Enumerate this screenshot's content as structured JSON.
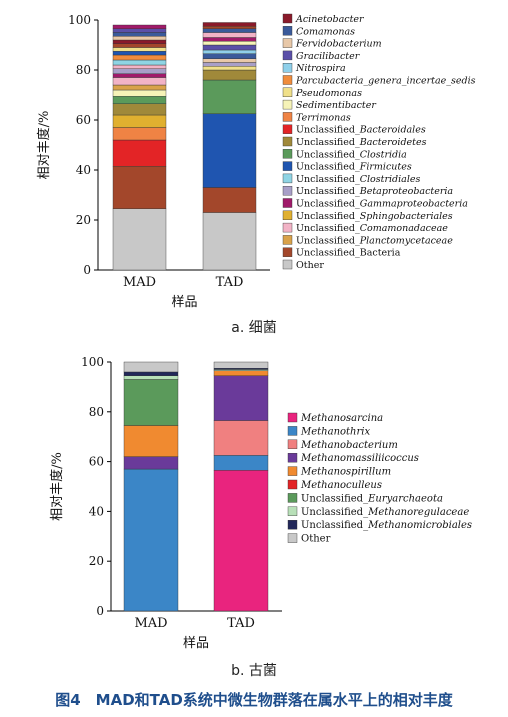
{
  "figure_caption": "图4　MAD和TAD系统中微生物群落在属水平上的相对丰度",
  "chart_data": [
    {
      "type": "bar",
      "stacked": true,
      "sub_caption": "a. 细菌",
      "xlabel": "样品",
      "ylabel": "相对丰度/%",
      "ylim": [
        0,
        100
      ],
      "yticks": [
        0,
        20,
        40,
        60,
        80,
        100
      ],
      "categories": [
        "MAD",
        "TAD"
      ],
      "legend_position": "right",
      "series": [
        {
          "name": "Other",
          "color": "#c8c8c8",
          "values": [
            24.5,
            23.0
          ]
        },
        {
          "name": "Unclassified_Bacteria",
          "color": "#a3472b",
          "values": [
            17.0,
            10.0
          ]
        },
        {
          "name": "Unclassified_Planctomycetaceae",
          "color": "#d9a24a",
          "values": [
            0,
            0
          ]
        },
        {
          "name": "Unclassified_Comamonadaceae",
          "color": "#f2b3c6",
          "values": [
            0,
            0
          ]
        },
        {
          "name": "Unclassified_Sphingobacteriales",
          "color": "#e0b030",
          "values": [
            0,
            0
          ]
        },
        {
          "name": "Unclassified_Gammaproteobacteria",
          "color": "#a01a6a",
          "values": [
            0,
            0
          ]
        },
        {
          "name": "Unclassified_Betaproteobacteria",
          "color": "#a89fc8",
          "values": [
            0,
            0
          ]
        },
        {
          "name": "Unclassified_Clostridiales",
          "color": "#8fd4e4",
          "values": [
            0,
            0
          ]
        },
        {
          "name": "Unclassified_Firmicutes",
          "color": "#1f55b0",
          "values": [
            0,
            29.5
          ]
        },
        {
          "name": "Unclassified_Clostridia",
          "color": "#5b9a5b",
          "values": [
            0,
            13.5
          ]
        },
        {
          "name": "Unclassified_Bacteroidetes",
          "color": "#a0893a",
          "values": [
            0,
            4.0
          ]
        },
        {
          "name": "Unclassified_Bacteroidales",
          "color": "#e32426",
          "values": [
            10.5,
            0
          ]
        },
        {
          "name": "Terrimonas",
          "color": "#ef8344",
          "values": [
            5.0,
            0
          ]
        },
        {
          "name": "Sedimentibacter",
          "color": "#f6f3b8",
          "values": [
            0,
            0
          ]
        },
        {
          "name": "Pseudomonas",
          "color": "#f0e08a",
          "values": [
            0,
            0
          ]
        },
        {
          "name": "Parcubacteria_genera_incertae_sedis",
          "color": "#f08c3c",
          "values": [
            0,
            0
          ]
        },
        {
          "name": "Nitrospira",
          "color": "#8fd0ea",
          "values": [
            0,
            0
          ]
        },
        {
          "name": "Gracilibacter",
          "color": "#5a4fa8",
          "values": [
            0,
            0
          ]
        },
        {
          "name": "Fervidobacterium",
          "color": "#e8c8a8",
          "values": [
            0,
            0
          ]
        },
        {
          "name": "Comamonas",
          "color": "#3a5a9a",
          "values": [
            0,
            0
          ]
        },
        {
          "name": "Acinetobacter",
          "color": "#8a1a2a",
          "values": [
            0,
            0
          ]
        }
      ],
      "top_segments": {
        "MAD": [
          {
            "color": "#e0b030",
            "value": 5.0
          },
          {
            "color": "#a0893a",
            "value": 4.5
          },
          {
            "color": "#5b9a5b",
            "value": 3.0
          },
          {
            "color": "#f6f3b8",
            "value": 2.5
          },
          {
            "color": "#d9a24a",
            "value": 2.0
          },
          {
            "color": "#f2b3c6",
            "value": 3.0
          },
          {
            "color": "#a01a6a",
            "value": 1.5
          },
          {
            "color": "#a89fc8",
            "value": 2.0
          },
          {
            "color": "#f2b3c6",
            "value": 1.5
          },
          {
            "color": "#8fd4e4",
            "value": 2.0
          },
          {
            "color": "#f08c3c",
            "value": 2.0
          },
          {
            "color": "#1f55b0",
            "value": 1.5
          },
          {
            "color": "#f0e08a",
            "value": 1.5
          },
          {
            "color": "#a3472b",
            "value": 1.5
          },
          {
            "color": "#8a1a2a",
            "value": 1.5
          },
          {
            "color": "#e8c8a8",
            "value": 1.5
          },
          {
            "color": "#3a5a9a",
            "value": 1.5
          },
          {
            "color": "#5a4fa8",
            "value": 1.5
          },
          {
            "color": "#a01a6a",
            "value": 1.5
          }
        ],
        "TAD": [
          {
            "color": "#f0e08a",
            "value": 1.5
          },
          {
            "color": "#a89fc8",
            "value": 1.5
          },
          {
            "color": "#e8c8a8",
            "value": 1.5
          },
          {
            "color": "#3a5a9a",
            "value": 2.0
          },
          {
            "color": "#8fd0ea",
            "value": 1.5
          },
          {
            "color": "#5a4fa8",
            "value": 2.0
          },
          {
            "color": "#f6f3b8",
            "value": 1.5
          },
          {
            "color": "#a01a6a",
            "value": 1.5
          },
          {
            "color": "#f2b3c6",
            "value": 2.0
          },
          {
            "color": "#3a5a9a",
            "value": 1.5
          },
          {
            "color": "#a3472b",
            "value": 1.0
          },
          {
            "color": "#8a1a2a",
            "value": 1.5
          }
        ]
      }
    },
    {
      "type": "bar",
      "stacked": true,
      "sub_caption": "b. 古菌",
      "xlabel": "样品",
      "ylabel": "相对丰度/%",
      "ylim": [
        0,
        100
      ],
      "yticks": [
        0,
        20,
        40,
        60,
        80,
        100
      ],
      "categories": [
        "MAD",
        "TAD"
      ],
      "legend_position": "right",
      "series": [
        {
          "name": "Methanosarcina",
          "color": "#e9247e",
          "values": [
            0,
            56.5
          ]
        },
        {
          "name": "Methanothrix",
          "color": "#3b86c7",
          "values": [
            57.0,
            6.0
          ]
        },
        {
          "name": "Methanobacterium",
          "color": "#f08080",
          "values": [
            0,
            14.0
          ]
        },
        {
          "name": "Methanomassiliicoccus",
          "color": "#6a3a9a",
          "values": [
            5.0,
            18.0
          ]
        },
        {
          "name": "Methanospirillum",
          "color": "#f08a30",
          "values": [
            12.5,
            2.0
          ]
        },
        {
          "name": "Methanoculleus",
          "color": "#e32426",
          "values": [
            0,
            0
          ]
        },
        {
          "name": "Unclassified_Euryarchaeota",
          "color": "#5b9a5b",
          "values": [
            18.5,
            0
          ]
        },
        {
          "name": "Unclassified_Methanoregulaceae",
          "color": "#b8e0b8",
          "values": [
            1.5,
            0.5
          ]
        },
        {
          "name": "Unclassified_Methanomicrobiales",
          "color": "#22285a",
          "values": [
            1.5,
            0.5
          ]
        },
        {
          "name": "Other",
          "color": "#c8c8c8",
          "values": [
            4.0,
            2.5
          ]
        }
      ]
    }
  ]
}
